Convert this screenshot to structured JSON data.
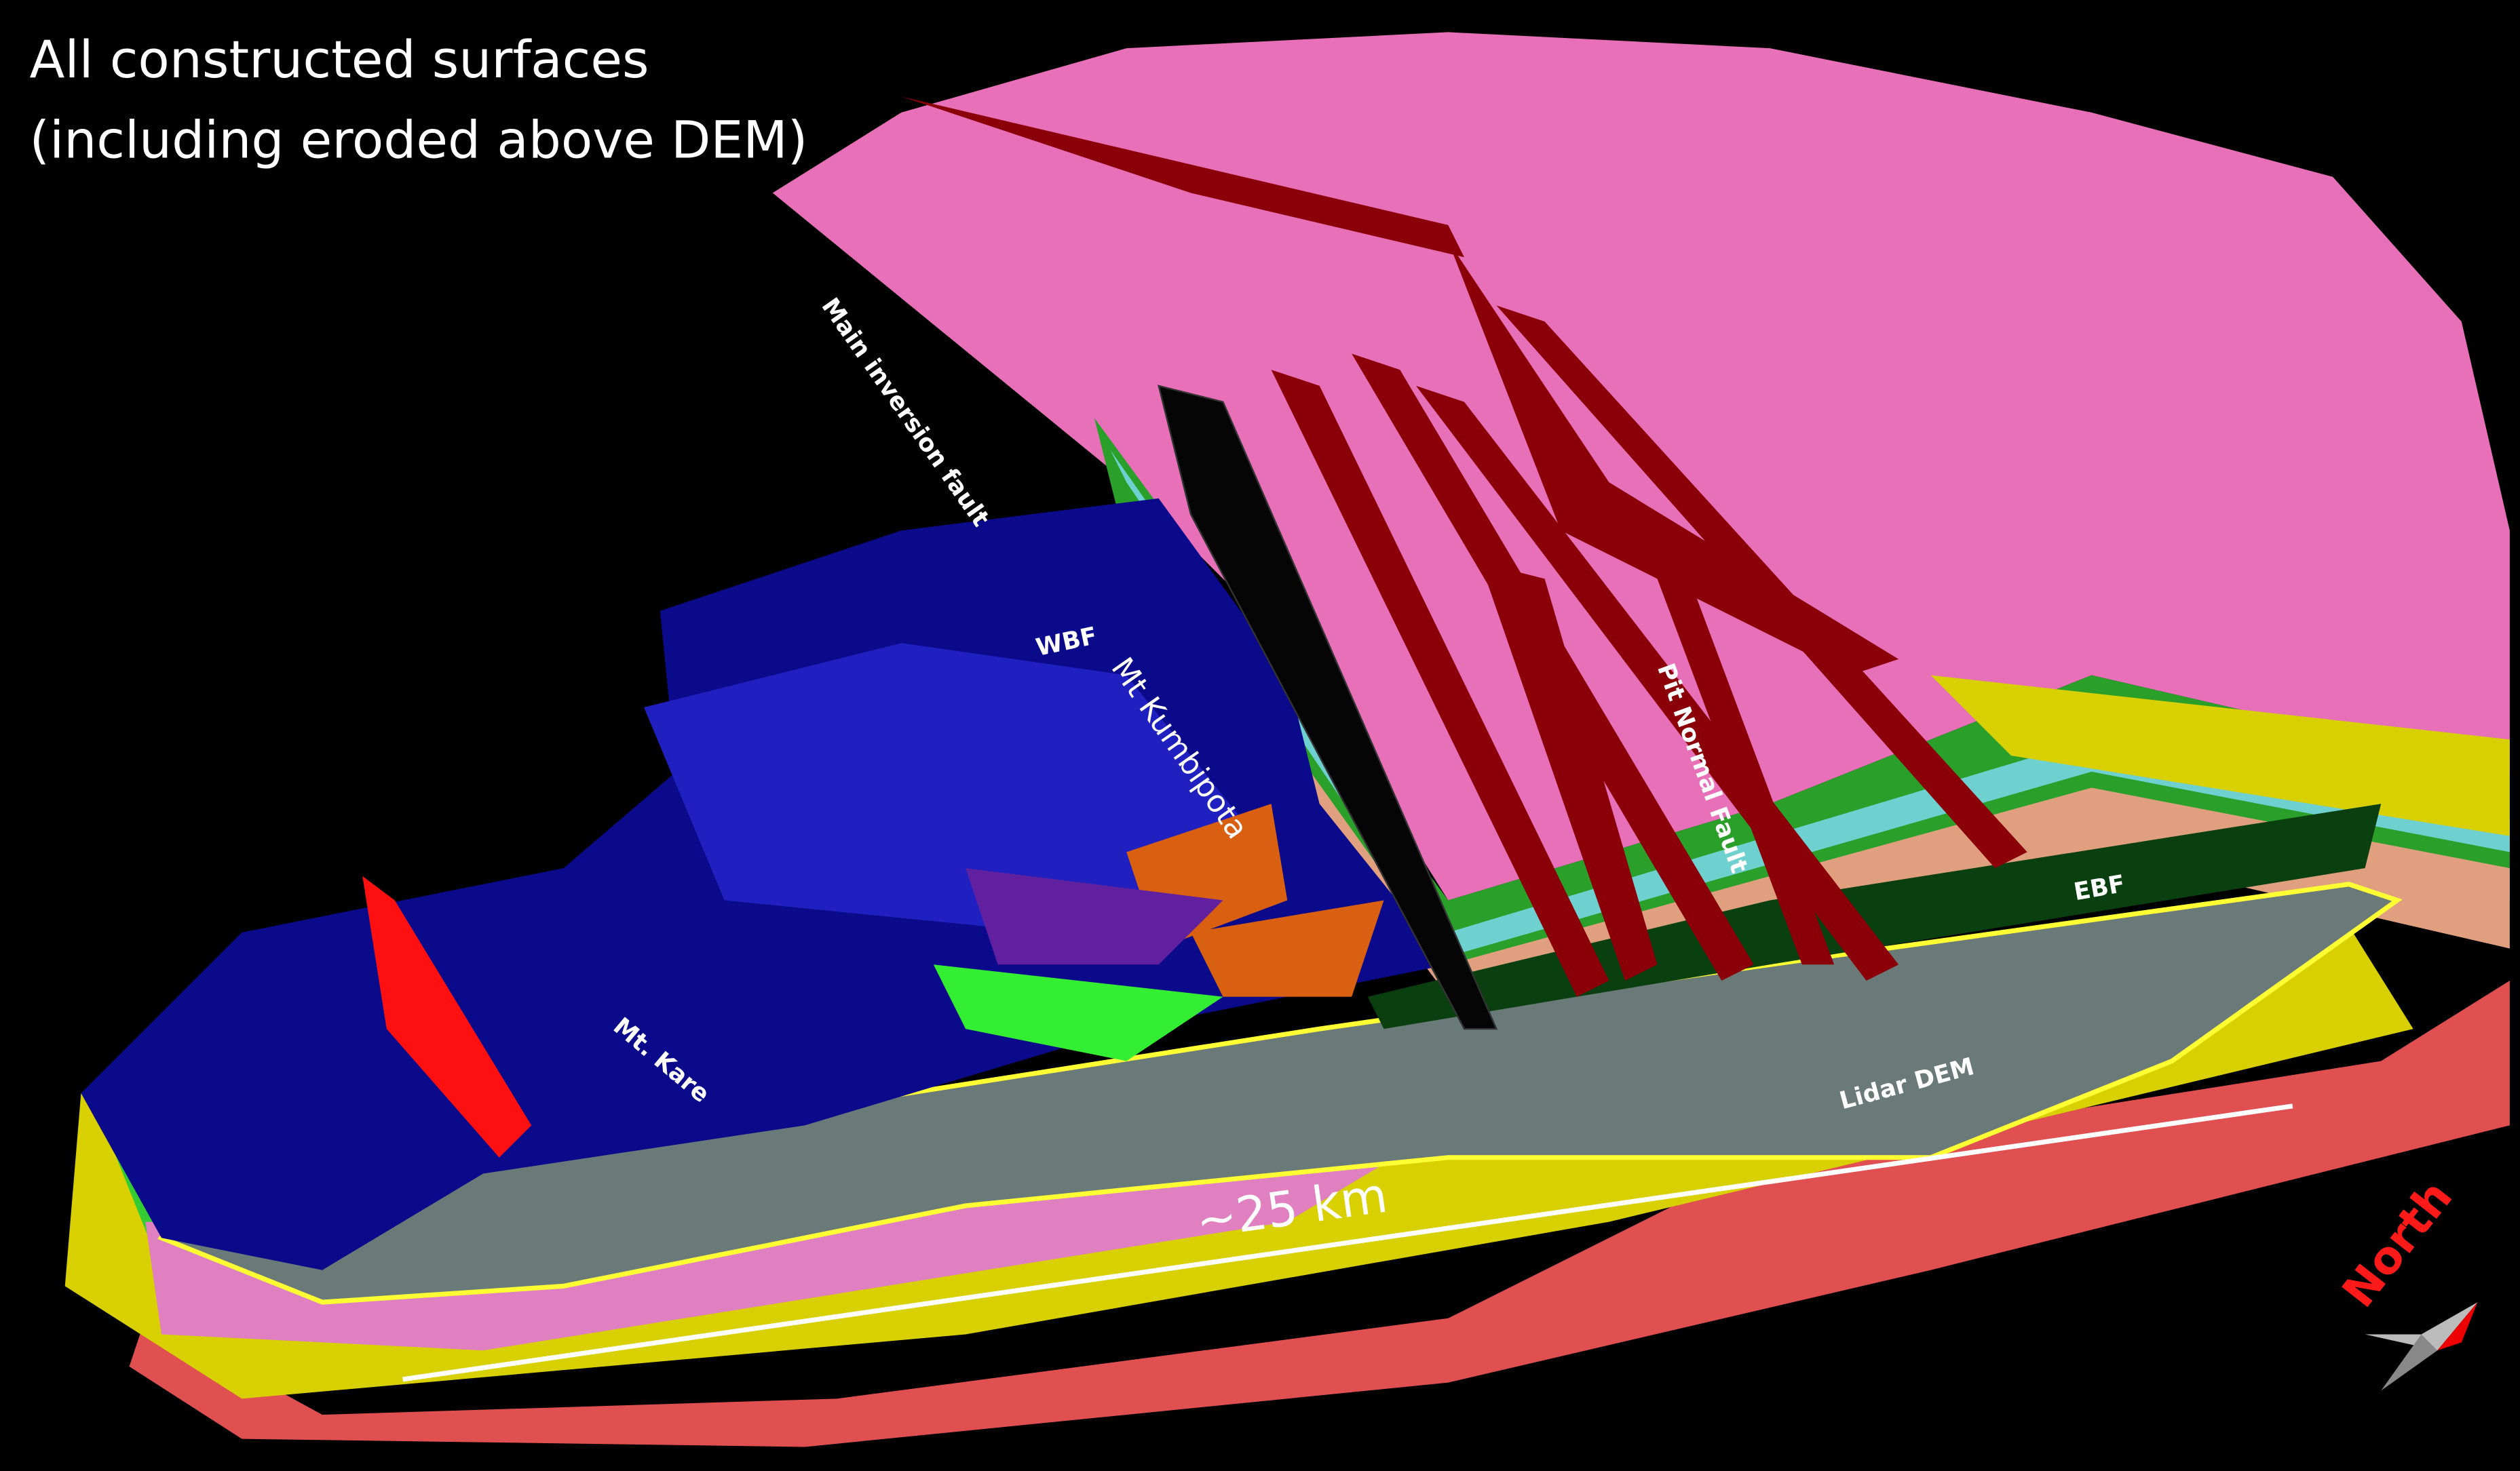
{
  "title": {
    "line1": "All constructed surfaces",
    "line2": "(including eroded above DEM)"
  },
  "labels": {
    "main_fault": "Main inversion fault",
    "wbf": "WBF",
    "kumbipota": "Mt Kumbipota",
    "pit_fault": "Pit Normal Fault",
    "ebf": "EBF",
    "lidar": "Lidar DEM",
    "kare": "Mt. Kare",
    "scale": "~25 km",
    "north": "North"
  }
}
